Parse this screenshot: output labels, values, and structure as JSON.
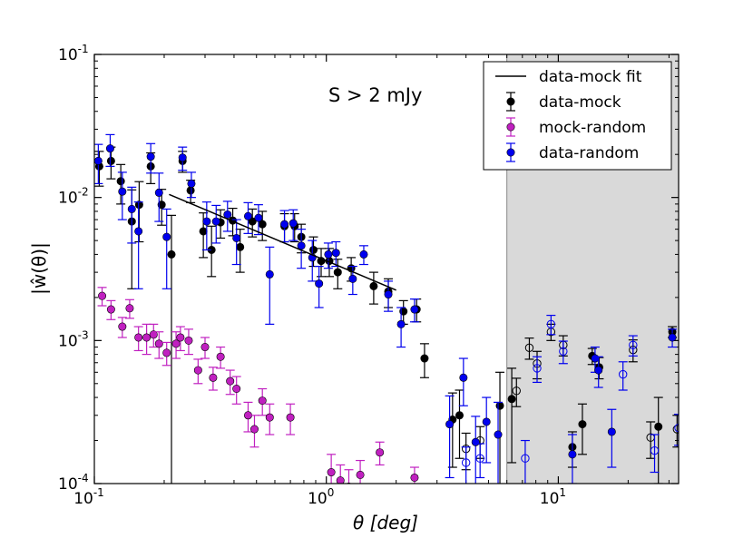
{
  "chart_data": {
    "type": "scatter",
    "xscale": "log",
    "yscale": "log",
    "xlim": [
      0.1,
      33
    ],
    "ylim": [
      0.0001,
      0.1
    ],
    "xlabel": "θ [deg]",
    "ylabel": "|ŵ(θ)|",
    "x_ticks": [
      {
        "value": 0.1,
        "base": "10",
        "exp": "-1"
      },
      {
        "value": 1,
        "base": "10",
        "exp": "0"
      },
      {
        "value": 10,
        "base": "10",
        "exp": "1"
      }
    ],
    "y_ticks": [
      {
        "value": 0.1,
        "base": "10",
        "exp": "-1"
      },
      {
        "value": 0.01,
        "base": "10",
        "exp": "-2"
      },
      {
        "value": 0.001,
        "base": "10",
        "exp": "-3"
      },
      {
        "value": 0.0001,
        "base": "10",
        "exp": "-4"
      }
    ],
    "annotation": "S > 2 mJy",
    "shaded_region": {
      "x_from": 6,
      "x_to": 33,
      "color": "#d9d9d9"
    },
    "legend_position": "top-right",
    "fit": {
      "name": "data-mock fit",
      "color": "#000000",
      "points": [
        [
          0.21,
          0.0105
        ],
        [
          2.0,
          0.00225
        ]
      ]
    },
    "series": [
      {
        "name": "data-mock",
        "color": "#000000",
        "points": [
          [
            0.105,
            0.0165,
            0.0045,
            0.0045
          ],
          [
            0.118,
            0.018,
            0.0045,
            0.0045
          ],
          [
            0.13,
            0.013,
            0.004,
            0.004
          ],
          [
            0.145,
            0.0068,
            0.0045,
            0.0045
          ],
          [
            0.156,
            0.0089,
            0.004,
            0.004
          ],
          [
            0.175,
            0.0165,
            0.004,
            0.004
          ],
          [
            0.195,
            0.0089,
            0.0025,
            0.0025
          ],
          [
            0.215,
            0.004,
            0.0045,
            0.0035
          ],
          [
            0.24,
            0.018,
            0.003,
            0.003
          ],
          [
            0.26,
            0.0112,
            0.002,
            0.002
          ],
          [
            0.295,
            0.0058,
            0.002,
            0.002
          ],
          [
            0.32,
            0.0043,
            0.0015,
            0.002
          ],
          [
            0.35,
            0.0067,
            0.0015,
            0.0015
          ],
          [
            0.395,
            0.0069,
            0.0015,
            0.0015
          ],
          [
            0.425,
            0.0045,
            0.0015,
            0.0015
          ],
          [
            0.48,
            0.0068,
            0.0015,
            0.0015
          ],
          [
            0.53,
            0.0065,
            0.0015,
            0.0015
          ],
          [
            0.66,
            0.0063,
            0.0014,
            0.0014
          ],
          [
            0.73,
            0.0063,
            0.0014,
            0.0014
          ],
          [
            0.78,
            0.0053,
            0.0012,
            0.0012
          ],
          [
            0.88,
            0.0043,
            0.001,
            0.001
          ],
          [
            0.95,
            0.0036,
            0.0008,
            0.0008
          ],
          [
            1.03,
            0.0036,
            0.0008,
            0.0008
          ],
          [
            1.12,
            0.003,
            0.0007,
            0.0007
          ],
          [
            1.28,
            0.0032,
            0.0006,
            0.0006
          ],
          [
            1.6,
            0.0024,
            0.0006,
            0.0006
          ],
          [
            1.85,
            0.0022,
            0.0005,
            0.0005
          ],
          [
            2.15,
            0.0016,
            0.0003,
            0.0003
          ],
          [
            2.45,
            0.00165,
            0.0003,
            0.0003
          ],
          [
            2.65,
            0.00075,
            0.0002,
            0.0002
          ],
          [
            3.5,
            0.00028,
            0.00015,
            0.00015
          ],
          [
            3.75,
            0.0003,
            0.00015,
            0.00015
          ],
          [
            5.6,
            0.00035,
            0.00025,
            0.00025
          ],
          [
            6.3,
            0.00039,
            0.00025,
            0.00025
          ],
          [
            15.0,
            0.00065,
            0.00011,
            0.00011
          ],
          [
            14.0,
            0.00078,
            0.0001,
            0.0001
          ],
          [
            27.0,
            0.00025,
            0.00015,
            0.00015
          ],
          [
            31.0,
            0.00115,
            0.0001,
            0.0001
          ],
          [
            11.5,
            0.00018,
            5e-05,
            5e-05
          ],
          [
            12.7,
            0.00026,
            0.0001,
            0.0001
          ]
        ]
      },
      {
        "name": "data-mock (negative)",
        "color": "#000000",
        "open": true,
        "points": [
          [
            4.0,
            0.000175,
            5e-05,
            5e-05
          ],
          [
            4.6,
            0.0002,
            5e-05,
            5e-05
          ],
          [
            6.6,
            0.000445,
            0.0001,
            0.0001
          ],
          [
            7.5,
            0.00089,
            0.00015,
            0.00015
          ],
          [
            8.1,
            0.00069,
            0.00015,
            0.00015
          ],
          [
            9.3,
            0.00115,
            0.00015,
            0.00015
          ],
          [
            10.5,
            0.00093,
            0.00015,
            0.00015
          ],
          [
            21.0,
            0.00086,
            0.00015,
            0.00015
          ],
          [
            25.0,
            0.00021,
            6e-05,
            6e-05
          ],
          [
            32.5,
            0.00024,
            6e-05,
            6e-05
          ]
        ]
      },
      {
        "name": "mock-random",
        "color": "#c020c0",
        "points": [
          [
            0.108,
            0.00205,
            0.0003,
            0.0003
          ],
          [
            0.118,
            0.00165,
            0.00025,
            0.00025
          ],
          [
            0.132,
            0.00125,
            0.0002,
            0.0002
          ],
          [
            0.142,
            0.00168,
            0.00025,
            0.00025
          ],
          [
            0.155,
            0.00105,
            0.0002,
            0.0002
          ],
          [
            0.168,
            0.00105,
            0.00025,
            0.00025
          ],
          [
            0.18,
            0.0011,
            0.0002,
            0.0002
          ],
          [
            0.19,
            0.00095,
            0.0002,
            0.0002
          ],
          [
            0.205,
            0.00082,
            0.00015,
            0.00015
          ],
          [
            0.225,
            0.00095,
            0.0002,
            0.0002
          ],
          [
            0.235,
            0.00105,
            0.0002,
            0.0002
          ],
          [
            0.255,
            0.001,
            0.0002,
            0.0002
          ],
          [
            0.28,
            0.00062,
            0.00012,
            0.00012
          ],
          [
            0.3,
            0.0009,
            0.00015,
            0.00015
          ],
          [
            0.325,
            0.00055,
            0.0001,
            0.0001
          ],
          [
            0.35,
            0.00077,
            0.00013,
            0.00013
          ],
          [
            0.385,
            0.00052,
            0.0001,
            0.0001
          ],
          [
            0.41,
            0.00046,
            0.0001,
            0.0001
          ],
          [
            0.46,
            0.0003,
            7e-05,
            7e-05
          ],
          [
            0.49,
            0.00024,
            6e-05,
            6e-05
          ],
          [
            0.53,
            0.00038,
            8e-05,
            8e-05
          ],
          [
            0.57,
            0.00029,
            7e-05,
            7e-05
          ],
          [
            0.7,
            0.00029,
            7e-05,
            7e-05
          ],
          [
            1.05,
            0.00012,
            4e-05,
            4e-05
          ],
          [
            1.15,
            0.000105,
            3e-05,
            3e-05
          ],
          [
            1.25,
            9.5e-05,
            3e-05,
            3e-05
          ],
          [
            1.4,
            0.000115,
            3e-05,
            3e-05
          ],
          [
            1.7,
            0.000165,
            3e-05,
            3e-05
          ],
          [
            2.4,
            0.00011,
            2e-05,
            2e-05
          ]
        ]
      },
      {
        "name": "data-random",
        "color": "#0000ee",
        "points": [
          [
            0.104,
            0.018,
            0.0055,
            0.0055
          ],
          [
            0.117,
            0.022,
            0.0055,
            0.0055
          ],
          [
            0.132,
            0.011,
            0.004,
            0.004
          ],
          [
            0.145,
            0.0083,
            0.0035,
            0.0035
          ],
          [
            0.155,
            0.0058,
            0.0035,
            0.0035
          ],
          [
            0.175,
            0.0193,
            0.0045,
            0.0045
          ],
          [
            0.19,
            0.0108,
            0.004,
            0.004
          ],
          [
            0.205,
            0.0053,
            0.003,
            0.003
          ],
          [
            0.24,
            0.019,
            0.0035,
            0.0035
          ],
          [
            0.262,
            0.0125,
            0.0025,
            0.0025
          ],
          [
            0.305,
            0.0068,
            0.0025,
            0.0025
          ],
          [
            0.335,
            0.0068,
            0.002,
            0.002
          ],
          [
            0.375,
            0.0076,
            0.0018,
            0.0018
          ],
          [
            0.41,
            0.0052,
            0.0018,
            0.0018
          ],
          [
            0.46,
            0.0074,
            0.0018,
            0.0018
          ],
          [
            0.51,
            0.0072,
            0.0017,
            0.0017
          ],
          [
            0.57,
            0.0029,
            0.0016,
            0.0016
          ],
          [
            0.66,
            0.0065,
            0.0016,
            0.0016
          ],
          [
            0.72,
            0.0066,
            0.0016,
            0.0016
          ],
          [
            0.78,
            0.0046,
            0.0014,
            0.0014
          ],
          [
            0.87,
            0.0038,
            0.0012,
            0.0012
          ],
          [
            0.93,
            0.0025,
            0.0008,
            0.0008
          ],
          [
            1.02,
            0.004,
            0.0008,
            0.0008
          ],
          [
            1.1,
            0.0041,
            0.0008,
            0.0008
          ],
          [
            1.3,
            0.0027,
            0.0006,
            0.0006
          ],
          [
            1.45,
            0.004,
            0.0006,
            0.0006
          ],
          [
            1.85,
            0.0021,
            0.0005,
            0.0005
          ],
          [
            2.1,
            0.0013,
            0.0004,
            0.0004
          ],
          [
            2.4,
            0.00165,
            0.0003,
            0.0003
          ],
          [
            3.4,
            0.00026,
            0.00015,
            0.00015
          ],
          [
            3.9,
            0.00055,
            0.0002,
            0.0002
          ],
          [
            4.4,
            0.000195,
            0.0001,
            0.0001
          ],
          [
            4.9,
            0.00027,
            0.00013,
            0.00013
          ],
          [
            5.5,
            0.00022,
            0.00015,
            0.00015
          ],
          [
            17.0,
            0.00023,
            0.0001,
            0.0001
          ],
          [
            11.5,
            0.00016,
            6e-05,
            6e-05
          ],
          [
            31.0,
            0.00105,
            0.00015,
            0.00015
          ],
          [
            14.4,
            0.00075,
            0.00015,
            0.00015
          ],
          [
            14.9,
            0.00062,
            0.00015,
            0.00015
          ]
        ]
      },
      {
        "name": "data-random (negative)",
        "color": "#0000ee",
        "open": true,
        "points": [
          [
            4.0,
            0.00014,
            4e-05,
            4e-05
          ],
          [
            4.6,
            0.00015,
            4e-05,
            4e-05
          ],
          [
            7.2,
            0.00015,
            5e-05,
            5e-05
          ],
          [
            8.1,
            0.00064,
            0.00013,
            0.00013
          ],
          [
            9.3,
            0.0013,
            0.0002,
            0.0002
          ],
          [
            10.5,
            0.00084,
            0.00015,
            0.00015
          ],
          [
            19.0,
            0.00058,
            0.00013,
            0.00013
          ],
          [
            21.0,
            0.00093,
            0.00015,
            0.00015
          ],
          [
            26.0,
            0.00017,
            5e-05,
            5e-05
          ],
          [
            33.0,
            0.000245,
            6e-05,
            6e-05
          ]
        ]
      }
    ],
    "legend": [
      {
        "label": "data-mock fit",
        "kind": "line",
        "color": "#000000"
      },
      {
        "label": "data-mock",
        "kind": "marker",
        "color": "#000000"
      },
      {
        "label": "mock-random",
        "kind": "marker",
        "color": "#c020c0"
      },
      {
        "label": "data-random",
        "kind": "marker",
        "color": "#0000ee"
      }
    ]
  }
}
